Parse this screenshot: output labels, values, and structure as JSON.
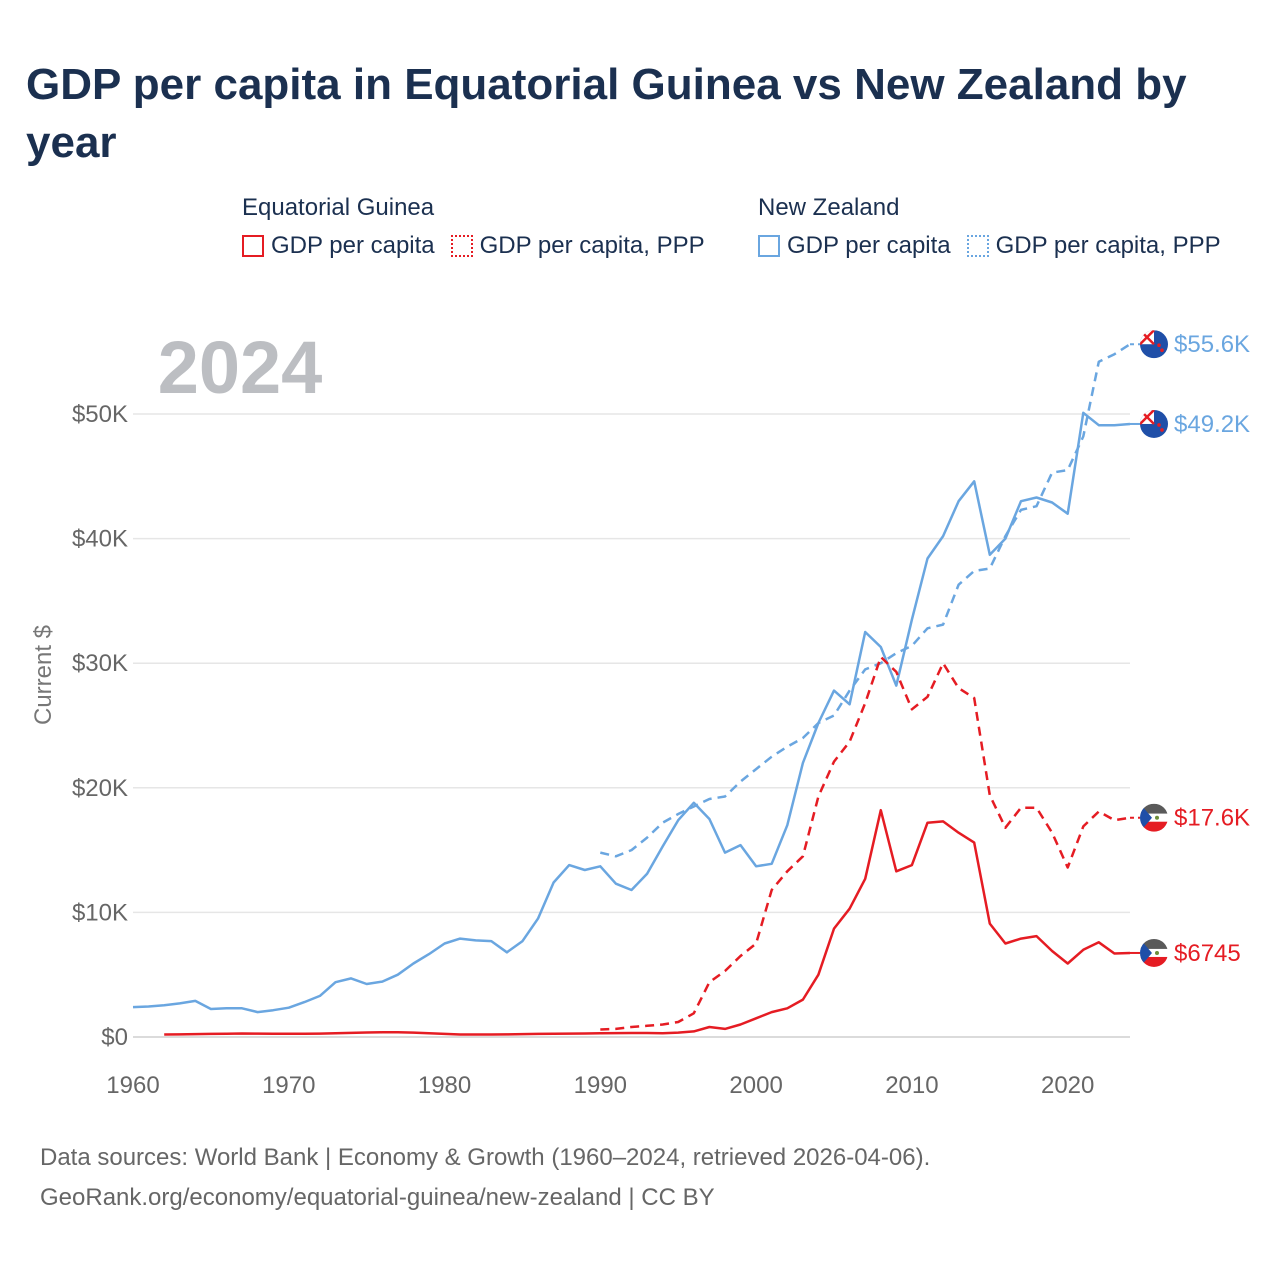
{
  "title": "GDP per capita in Equatorial Guinea vs New Zealand by year",
  "year_label": "2024",
  "legend": {
    "groups": [
      {
        "name": "Equatorial Guinea",
        "color": "#e51c23",
        "items": [
          {
            "label": "GDP per capita",
            "style": "solid"
          },
          {
            "label": "GDP per capita, PPP",
            "style": "dotted"
          }
        ]
      },
      {
        "name": "New Zealand",
        "color": "#6aa6e0",
        "items": [
          {
            "label": "GDP per capita",
            "style": "solid"
          },
          {
            "label": "GDP per capita, PPP",
            "style": "dotted"
          }
        ]
      }
    ]
  },
  "footer": {
    "line1": "Data sources: World Bank | Economy & Growth (1960–2024, retrieved 2026-04-06).",
    "line2": "GeoRank.org/economy/equatorial-guinea/new-zealand | CC BY"
  },
  "chart_data": {
    "type": "line",
    "ylabel": "Current $",
    "xlim": [
      1960,
      2024
    ],
    "ylim": [
      0,
      55600
    ],
    "x_ticks": [
      {
        "value": 1960,
        "label": "1960"
      },
      {
        "value": 1970,
        "label": "1970"
      },
      {
        "value": 1980,
        "label": "1980"
      },
      {
        "value": 1990,
        "label": "1990"
      },
      {
        "value": 2000,
        "label": "2000"
      },
      {
        "value": 2010,
        "label": "2010"
      },
      {
        "value": 2020,
        "label": "2020"
      }
    ],
    "y_ticks": [
      {
        "value": 0,
        "label": "$0"
      },
      {
        "value": 10000,
        "label": "$10K"
      },
      {
        "value": 20000,
        "label": "$20K"
      },
      {
        "value": 30000,
        "label": "$30K"
      },
      {
        "value": 40000,
        "label": "$40K"
      },
      {
        "value": 50000,
        "label": "$50K"
      }
    ],
    "series": [
      {
        "name": "New Zealand GDP per capita",
        "color": "#6aa6e0",
        "dash": "solid",
        "end_label": "$49.2K",
        "flag": "nz",
        "x": [
          1960,
          1961,
          1962,
          1963,
          1964,
          1965,
          1966,
          1967,
          1968,
          1969,
          1970,
          1971,
          1972,
          1973,
          1974,
          1975,
          1976,
          1977,
          1978,
          1979,
          1980,
          1981,
          1982,
          1983,
          1984,
          1985,
          1986,
          1987,
          1988,
          1989,
          1990,
          1991,
          1992,
          1993,
          1994,
          1995,
          1996,
          1997,
          1998,
          1999,
          2000,
          2001,
          2002,
          2003,
          2004,
          2005,
          2006,
          2007,
          2008,
          2009,
          2010,
          2011,
          2012,
          2013,
          2014,
          2015,
          2016,
          2017,
          2018,
          2019,
          2020,
          2021,
          2022,
          2023,
          2024
        ],
        "y": [
          2400,
          2450,
          2550,
          2700,
          2900,
          2250,
          2300,
          2300,
          2000,
          2150,
          2350,
          2800,
          3300,
          4400,
          4700,
          4250,
          4450,
          5000,
          5900,
          6650,
          7500,
          7900,
          7750,
          7700,
          6800,
          7700,
          9500,
          12400,
          13800,
          13400,
          13700,
          12300,
          11800,
          13100,
          15300,
          17400,
          18800,
          17500,
          14800,
          15400,
          13700,
          13900,
          17000,
          22000,
          25200,
          27800,
          26700,
          32500,
          31300,
          28200,
          33500,
          38400,
          40200,
          43000,
          44600,
          38700,
          40000,
          43000,
          43300,
          42900,
          42000,
          50100,
          49100,
          49100,
          49200
        ]
      },
      {
        "name": "New Zealand GDP per capita, PPP",
        "color": "#6aa6e0",
        "dash": "dashed",
        "end_label": "$55.6K",
        "flag": "nz",
        "x": [
          1990,
          1991,
          1992,
          1993,
          1994,
          1995,
          1996,
          1997,
          1998,
          1999,
          2000,
          2001,
          2002,
          2003,
          2004,
          2005,
          2006,
          2007,
          2008,
          2009,
          2010,
          2011,
          2012,
          2013,
          2014,
          2015,
          2016,
          2017,
          2018,
          2019,
          2020,
          2021,
          2022,
          2023,
          2024
        ],
        "y": [
          14800,
          14500,
          15000,
          16000,
          17200,
          17900,
          18500,
          19100,
          19300,
          20500,
          21500,
          22500,
          23300,
          24000,
          25200,
          25800,
          27800,
          29500,
          30000,
          30800,
          31400,
          32800,
          33100,
          36300,
          37400,
          37600,
          40200,
          42300,
          42600,
          45300,
          45500,
          48200,
          54200,
          54800,
          55600
        ]
      },
      {
        "name": "Equatorial Guinea GDP per capita",
        "color": "#e51c23",
        "dash": "solid",
        "end_label": "$6745",
        "flag": "gq",
        "x": [
          1962,
          1963,
          1964,
          1965,
          1966,
          1967,
          1968,
          1969,
          1970,
          1971,
          1972,
          1973,
          1974,
          1975,
          1976,
          1977,
          1978,
          1979,
          1980,
          1981,
          1982,
          1983,
          1984,
          1985,
          1986,
          1987,
          1988,
          1989,
          1990,
          1991,
          1992,
          1993,
          1994,
          1995,
          1996,
          1997,
          1998,
          1999,
          2000,
          2001,
          2002,
          2003,
          2004,
          2005,
          2006,
          2007,
          2008,
          2009,
          2010,
          2011,
          2012,
          2013,
          2014,
          2015,
          2016,
          2017,
          2018,
          2019,
          2020,
          2021,
          2022,
          2023,
          2024
        ],
        "y": [
          200,
          210,
          230,
          250,
          260,
          280,
          270,
          260,
          260,
          260,
          270,
          300,
          330,
          360,
          380,
          380,
          350,
          300,
          250,
          200,
          200,
          200,
          210,
          230,
          250,
          260,
          270,
          280,
          300,
          310,
          320,
          320,
          300,
          350,
          450,
          800,
          650,
          1000,
          1500,
          2000,
          2300,
          3000,
          5000,
          8700,
          10300,
          12700,
          18200,
          13300,
          13800,
          17200,
          17300,
          16400,
          15600,
          9100,
          7500,
          7900,
          8100,
          6900,
          5900,
          7000,
          7600,
          6700,
          6745
        ]
      },
      {
        "name": "Equatorial Guinea GDP per capita, PPP",
        "color": "#e51c23",
        "dash": "dashed",
        "end_label": "$17.6K",
        "flag": "gq",
        "x": [
          1990,
          1991,
          1992,
          1993,
          1994,
          1995,
          1996,
          1997,
          1998,
          1999,
          2000,
          2001,
          2002,
          2003,
          2004,
          2005,
          2006,
          2007,
          2008,
          2009,
          2010,
          2011,
          2012,
          2013,
          2014,
          2015,
          2016,
          2017,
          2018,
          2019,
          2020,
          2021,
          2022,
          2023,
          2024
        ],
        "y": [
          600,
          650,
          800,
          900,
          1000,
          1200,
          1900,
          4400,
          5300,
          6500,
          7500,
          11800,
          13300,
          14500,
          19300,
          22100,
          23700,
          26800,
          30500,
          29300,
          26300,
          27300,
          30000,
          28000,
          27200,
          19400,
          16800,
          18400,
          18400,
          16400,
          13600,
          16900,
          18100,
          17400,
          17600
        ]
      }
    ]
  }
}
